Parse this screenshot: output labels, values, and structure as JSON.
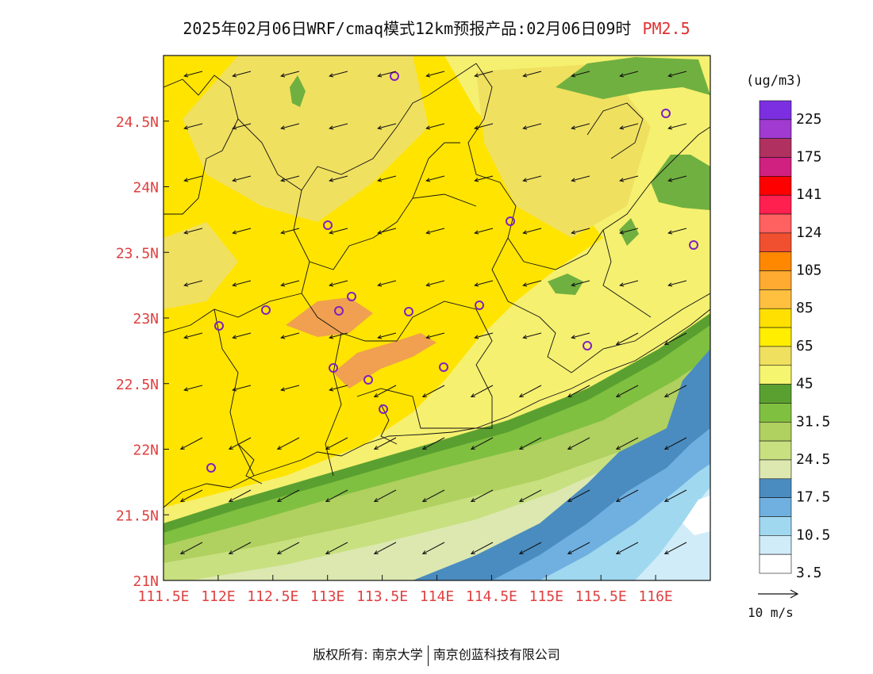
{
  "title": {
    "main": "2025年02月06日WRF/cmaq模式12km预报产品:02月06日09时",
    "pollutant": "PM2.5"
  },
  "axes": {
    "x_ticks": [
      "111.5E",
      "112E",
      "112.5E",
      "113E",
      "113.5E",
      "114E",
      "114.5E",
      "115E",
      "115.5E",
      "116E"
    ],
    "y_ticks": [
      "21N",
      "21.5N",
      "22N",
      "22.5N",
      "23N",
      "23.5N",
      "24N",
      "24.5N"
    ],
    "x_range": [
      111.5,
      116.5
    ],
    "y_range": [
      21.0,
      25.0
    ],
    "tick_color": "#e04040"
  },
  "legend": {
    "units": "(ug/m3)",
    "labels": [
      "225",
      "175",
      "141",
      "124",
      "105",
      "85",
      "65",
      "45",
      "31.5",
      "24.5",
      "17.5",
      "10.5",
      "3.5"
    ],
    "colors_top_to_bottom": [
      "#7b2fe0",
      "#a03ad0",
      "#b03060",
      "#d02080",
      "#ff0000",
      "#ff2050",
      "#ff6060",
      "#f05030",
      "#ff8800",
      "#ffaa30",
      "#ffc040",
      "#ffe000",
      "#ffee00",
      "#f0e060",
      "#f5f570",
      "#5aa030",
      "#80c040",
      "#b0d060",
      "#c8e080",
      "#dce8b0",
      "#4a8cc0",
      "#70b0e0",
      "#a0d8f0",
      "#d0ecf8",
      "#ffffff"
    ]
  },
  "wind": {
    "reference_label": "10 m/s",
    "prevailing_direction": "northeast"
  },
  "monitoring_color": "#8020c0",
  "copyright": {
    "left": "版权所有: 南京大学",
    "right": "南京创蓝科技有限公司"
  }
}
